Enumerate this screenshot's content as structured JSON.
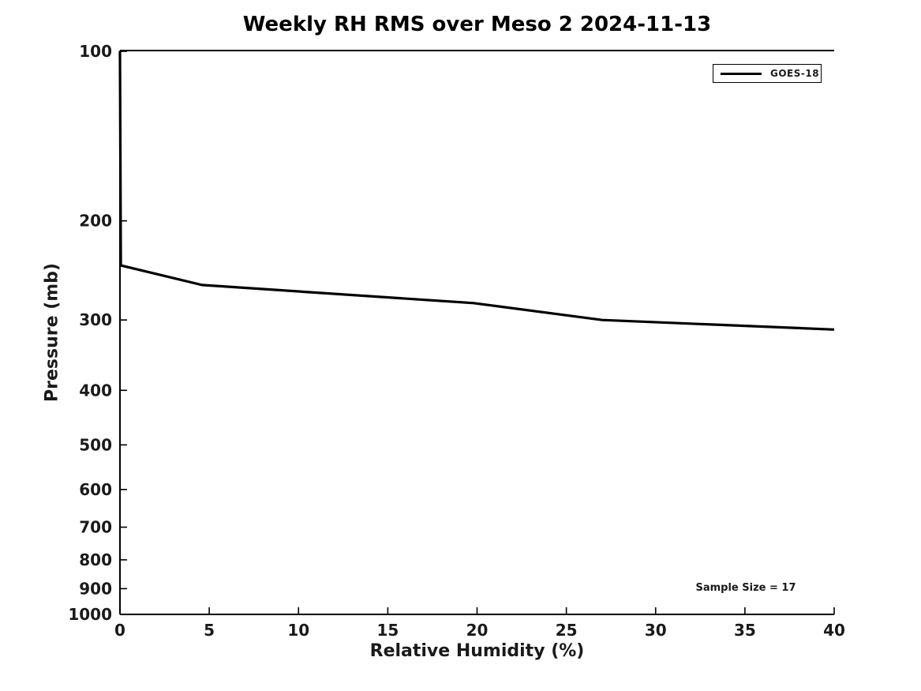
{
  "chart_data": {
    "type": "line",
    "title": "Weekly RH RMS over Meso 2 2024-11-13",
    "xlabel": "Relative Humidity (%)",
    "ylabel": "Pressure (mb)",
    "x_ticks": [
      0,
      5,
      10,
      15,
      20,
      25,
      30,
      35,
      40
    ],
    "y_ticks": [
      100,
      200,
      300,
      400,
      500,
      600,
      700,
      800,
      900,
      1000
    ],
    "xlim": [
      0,
      40
    ],
    "ylim": [
      100,
      1000
    ],
    "y_scale": "log",
    "y_inverted": true,
    "grid": false,
    "axis_color": "#000000",
    "tick_label_color": "#1a1a1a",
    "legend": {
      "position": "top-right",
      "entries": [
        {
          "label": "GOES-18",
          "color": "#000000"
        }
      ]
    },
    "annotation": "Sample Size = 17",
    "series": [
      {
        "name": "GOES-18",
        "color": "#000000",
        "points": [
          {
            "rh": 0.0,
            "pressure": 100
          },
          {
            "rh": 0.05,
            "pressure": 240
          },
          {
            "rh": 4.6,
            "pressure": 260
          },
          {
            "rh": 19.8,
            "pressure": 280
          },
          {
            "rh": 27.0,
            "pressure": 300
          },
          {
            "rh": 40.0,
            "pressure": 312
          }
        ]
      }
    ]
  }
}
